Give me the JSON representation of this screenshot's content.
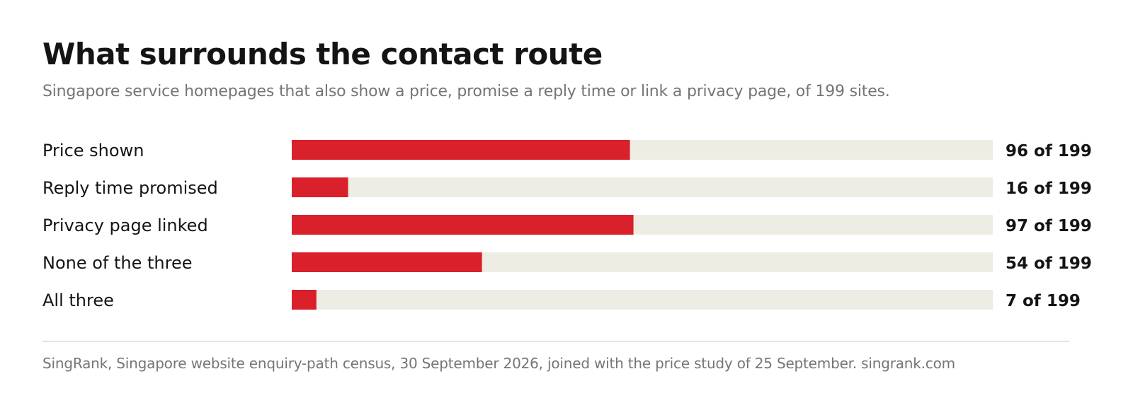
{
  "title": "What surrounds the contact route",
  "subtitle": "Singapore service homepages that also show a price, promise a reply time or link a privacy page, of 199 sites.",
  "source": "SingRank, Singapore website enquiry-path census, 30 September 2026, joined with the price study of 25 September. singrank.com",
  "colors": {
    "bar": "#d9202b",
    "track": "#eeede4",
    "text": "#141414",
    "muted": "#757575"
  },
  "chart_data": {
    "type": "bar",
    "orientation": "horizontal",
    "total": 199,
    "categories": [
      "Price shown",
      "Reply time promised",
      "Privacy page linked",
      "None of the three",
      "All three"
    ],
    "values": [
      96,
      16,
      97,
      54,
      7
    ],
    "value_labels": [
      "96 of 199",
      "16 of 199",
      "97 of 199",
      "54 of 199",
      "7 of 199"
    ],
    "xlim": [
      0,
      199
    ],
    "grid": false,
    "legend": "none"
  }
}
